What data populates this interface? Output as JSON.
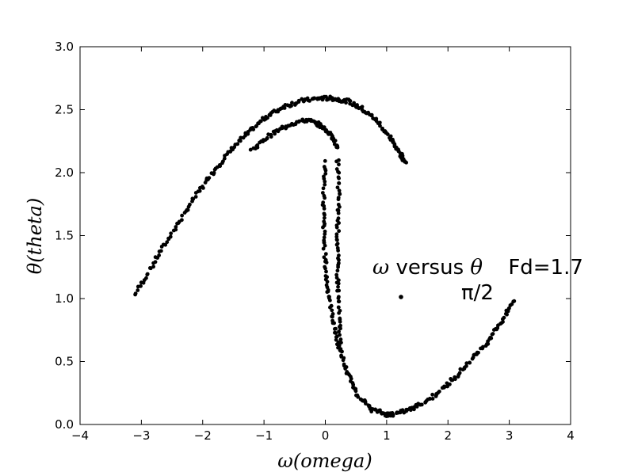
{
  "chart_data": {
    "type": "scatter",
    "title": "",
    "xlabel": "ω(omega)",
    "ylabel": "θ(theta)",
    "xlim": [
      -4,
      4
    ],
    "ylim": [
      0,
      3
    ],
    "xticks": [
      "−4",
      "−3",
      "−2",
      "−1",
      "0",
      "1",
      "2",
      "3",
      "4"
    ],
    "yticks": [
      "0.0",
      "0.5",
      "1.0",
      "1.5",
      "2.0",
      "2.5",
      "3.0"
    ],
    "grid": false,
    "legend_placement": "center-right",
    "legend": {
      "omega_symbol": "ω",
      "versus": " versus ",
      "theta_symbol": "θ",
      "fd": "Fd=1.7",
      "pi_label": "π/2"
    },
    "marker_color": "#000000",
    "series": [
      {
        "name": "ω versus θ   Fd=1.7",
        "arcs": [
          {
            "from": [
              -3.1,
              1.03
            ],
            "to": [
              0.1,
              2.59
            ],
            "points": [
              [
                -3.1,
                1.03
              ],
              [
                -2.8,
                1.28
              ],
              [
                -2.5,
                1.52
              ],
              [
                -2.2,
                1.75
              ],
              [
                -1.9,
                1.96
              ],
              [
                -1.6,
                2.14
              ],
              [
                -1.3,
                2.3
              ],
              [
                -1.0,
                2.43
              ],
              [
                -0.7,
                2.52
              ],
              [
                -0.4,
                2.57
              ],
              [
                -0.1,
                2.59
              ],
              [
                0.1,
                2.59
              ]
            ]
          },
          {
            "from": [
              0.1,
              2.59
            ],
            "to": [
              1.32,
              2.08
            ],
            "points": [
              [
                0.1,
                2.59
              ],
              [
                0.35,
                2.57
              ],
              [
                0.6,
                2.51
              ],
              [
                0.85,
                2.41
              ],
              [
                1.05,
                2.28
              ],
              [
                1.2,
                2.17
              ],
              [
                1.32,
                2.08
              ]
            ]
          },
          {
            "from": [
              -1.2,
              2.18
            ],
            "to": [
              0.2,
              2.2
            ],
            "points": [
              [
                -1.2,
                2.18
              ],
              [
                -0.9,
                2.3
              ],
              [
                -0.6,
                2.38
              ],
              [
                -0.3,
                2.42
              ],
              [
                -0.1,
                2.38
              ],
              [
                0.1,
                2.3
              ],
              [
                0.2,
                2.2
              ]
            ]
          },
          {
            "from": [
              0.0,
              2.08
            ],
            "to": [
              1.1,
              0.08
            ],
            "points": [
              [
                0.0,
                2.08
              ],
              [
                -0.03,
                1.75
              ],
              [
                -0.02,
                1.45
              ],
              [
                0.02,
                1.15
              ],
              [
                0.1,
                0.9
              ],
              [
                0.2,
                0.65
              ],
              [
                0.35,
                0.42
              ],
              [
                0.52,
                0.24
              ],
              [
                0.75,
                0.12
              ],
              [
                1.0,
                0.08
              ],
              [
                1.1,
                0.08
              ]
            ]
          },
          {
            "from": [
              0.2,
              2.1
            ],
            "to": [
              0.25,
              0.6
            ],
            "points": [
              [
                0.2,
                2.1
              ],
              [
                0.22,
                1.8
              ],
              [
                0.2,
                1.5
              ],
              [
                0.2,
                1.2
              ],
              [
                0.22,
                0.9
              ],
              [
                0.25,
                0.6
              ]
            ]
          },
          {
            "from": [
              1.1,
              0.08
            ],
            "to": [
              3.08,
              0.98
            ],
            "points": [
              [
                1.1,
                0.08
              ],
              [
                1.4,
                0.12
              ],
              [
                1.7,
                0.2
              ],
              [
                2.0,
                0.32
              ],
              [
                2.3,
                0.47
              ],
              [
                2.6,
                0.63
              ],
              [
                2.85,
                0.8
              ],
              [
                3.08,
                0.98
              ]
            ]
          }
        ]
      }
    ]
  }
}
